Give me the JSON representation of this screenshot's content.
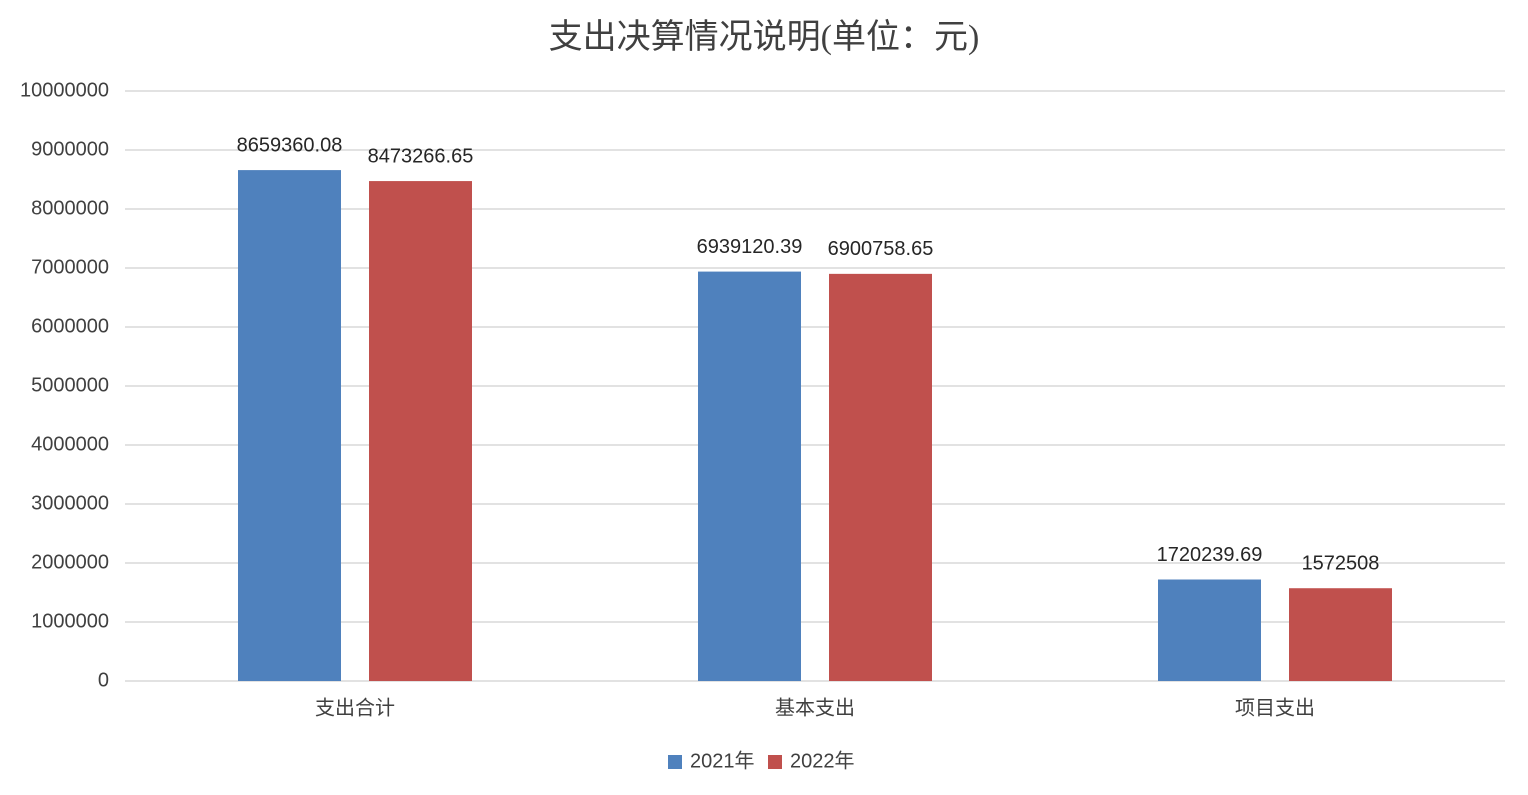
{
  "chart_data": {
    "type": "bar",
    "title": "支出决算情况说明(单位：元)",
    "categories": [
      "支出合计",
      "基本支出",
      "项目支出"
    ],
    "series": [
      {
        "name": "2021年",
        "color": "#4f81bd",
        "values": [
          8659360.08,
          6939120.39,
          1720239.69
        ]
      },
      {
        "name": "2022年",
        "color": "#c0504d",
        "values": [
          8473266.65,
          6900758.65,
          1572508
        ]
      }
    ],
    "ylim": [
      0,
      10000000
    ],
    "yticks": [
      0,
      1000000,
      2000000,
      3000000,
      4000000,
      5000000,
      6000000,
      7000000,
      8000000,
      9000000,
      10000000
    ],
    "grid": true,
    "legend": "bottom"
  }
}
